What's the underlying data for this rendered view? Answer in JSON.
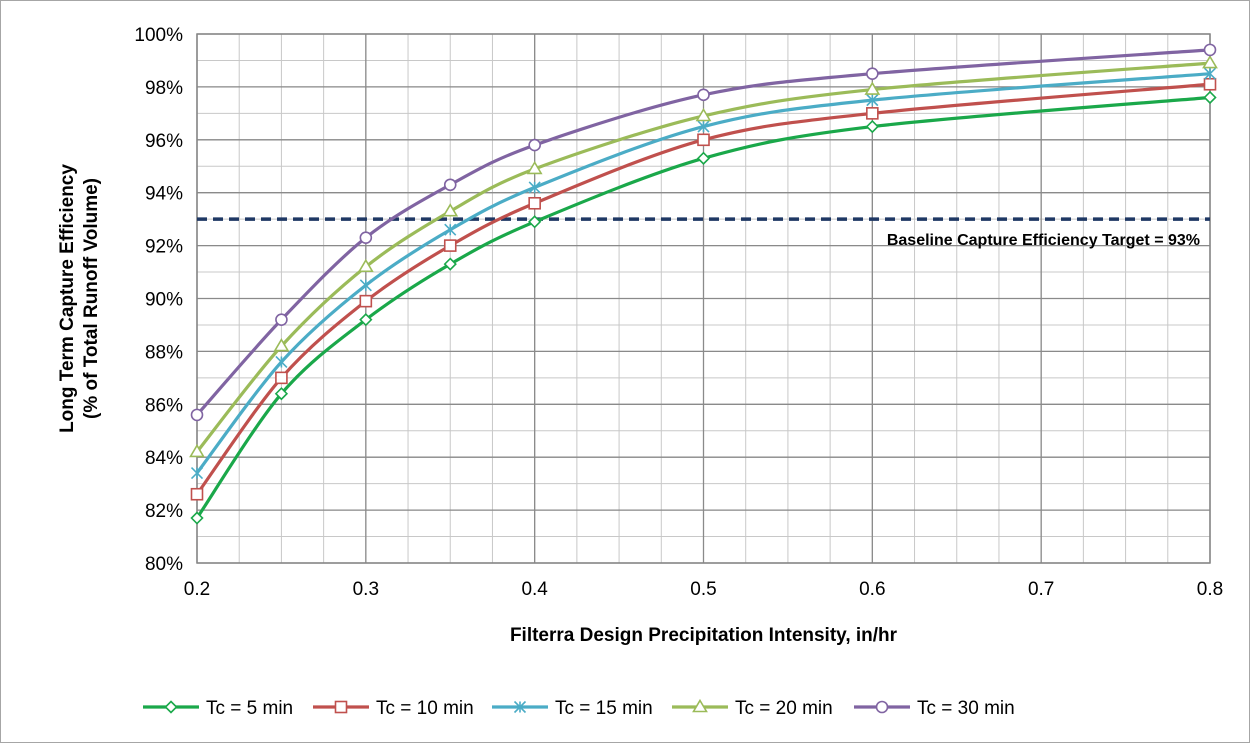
{
  "chart_data": {
    "type": "line",
    "title": "",
    "xlabel": "Filterra Design Precipitation Intensity, in/hr",
    "ylabel_line1": "Long Term Capture Efficiency",
    "ylabel_line2": "(% of Total Runoff Volume)",
    "xlim": [
      0.2,
      0.8
    ],
    "ylim": [
      80,
      100
    ],
    "x_ticks": [
      "0.2",
      "0.3",
      "0.4",
      "0.5",
      "0.6",
      "0.7",
      "0.8"
    ],
    "x_tick_values": [
      0.2,
      0.3,
      0.4,
      0.5,
      0.6,
      0.7,
      0.8
    ],
    "y_ticks": [
      "80%",
      "82%",
      "84%",
      "86%",
      "88%",
      "90%",
      "92%",
      "94%",
      "96%",
      "98%",
      "100%"
    ],
    "y_tick_values": [
      80,
      82,
      84,
      86,
      88,
      90,
      92,
      94,
      96,
      98,
      100
    ],
    "grid": true,
    "legend_position": "bottom",
    "x": [
      0.2,
      0.25,
      0.3,
      0.35,
      0.4,
      0.5,
      0.6,
      0.8
    ],
    "series": [
      {
        "name": "Tc = 5 min",
        "color": "#1aa84a",
        "marker": "diamond",
        "values": [
          81.7,
          86.4,
          89.2,
          91.3,
          92.9,
          95.3,
          96.5,
          97.6
        ]
      },
      {
        "name": "Tc = 10 min",
        "color": "#c0504d",
        "marker": "square",
        "values": [
          82.6,
          87.0,
          89.9,
          92.0,
          93.6,
          96.0,
          97.0,
          98.1
        ]
      },
      {
        "name": "Tc = 15 min",
        "color": "#4bacc6",
        "marker": "asterisk",
        "values": [
          83.4,
          87.6,
          90.5,
          92.6,
          94.2,
          96.5,
          97.5,
          98.5
        ]
      },
      {
        "name": "Tc = 20 min",
        "color": "#9bbb59",
        "marker": "triangle",
        "values": [
          84.2,
          88.2,
          91.2,
          93.3,
          94.9,
          96.9,
          97.9,
          98.9
        ]
      },
      {
        "name": "Tc = 30 min",
        "color": "#8064a2",
        "marker": "circle",
        "values": [
          85.6,
          89.2,
          92.3,
          94.3,
          95.8,
          97.7,
          98.5,
          99.4
        ]
      }
    ],
    "reference_line": {
      "value": 93,
      "color": "#1f3864",
      "style": "dashed"
    },
    "annotation": "Baseline Capture Efficiency Target = 93%"
  }
}
